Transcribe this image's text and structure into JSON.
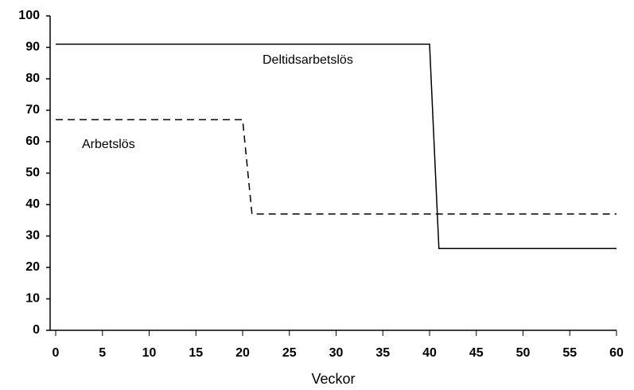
{
  "chart_data": {
    "type": "line",
    "x_label": "Veckor",
    "x": [
      [
        0,
        20,
        21,
        60
      ],
      [
        0,
        40,
        41,
        60
      ]
    ],
    "series": [
      {
        "name": "Arbetslös",
        "color": "#000000",
        "dash": true,
        "x": [
          0,
          20,
          21,
          60
        ],
        "values": [
          67,
          67,
          37,
          37
        ]
      },
      {
        "name": "Deltidsarbetslös",
        "color": "#000000",
        "dash": false,
        "x": [
          0,
          40,
          41,
          60
        ],
        "values": [
          91,
          91,
          26,
          26
        ]
      }
    ],
    "xlim": [
      0,
      60
    ],
    "xticks": [
      0,
      5,
      10,
      15,
      20,
      25,
      30,
      35,
      40,
      45,
      50,
      55,
      60
    ],
    "ylim": [
      0,
      100
    ],
    "yticks": [
      0,
      10,
      20,
      30,
      40,
      50,
      60,
      70,
      80,
      90,
      100
    ],
    "grid": false
  }
}
